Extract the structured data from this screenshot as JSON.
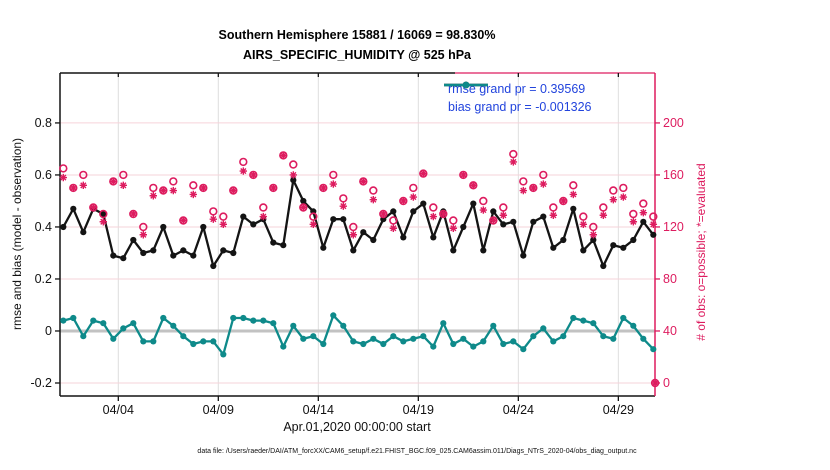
{
  "footer": {
    "data_file": "data file: /Users/raeder/DAI/ATM_forcXX/CAM6_setup/f.e21.FHIST_BGC.f09_025.CAM6assim.011/Diags_NTrS_2020-04/obs_diag_output.nc"
  },
  "legend": {
    "rmse_label": "rmse grand pr = 0.39569",
    "bias_label": "bias grand pr = -0.001326",
    "text_color": "#2244dd"
  },
  "colors": {
    "rmse": "#141414",
    "bias": "#0e8a8a",
    "obs": "#dd1c5f",
    "zero_line": "#c2c2c2",
    "grid_h": "#f6d3da",
    "grid_v": "#dedede",
    "axis_left": "#141414",
    "axis_right": "#dd1c5f"
  },
  "chart_data": {
    "type": "line",
    "title": "Southern Hemisphere 15881 / 16069 = 98.830%",
    "subtitle": "AIRS_SPECIFIC_HUMIDITY @ 525 hPa",
    "xlabel": "Apr.01,2020 00:00:00 start",
    "ylabel_left": "rmse and bias (model - observation)",
    "ylabel_right": "# of obs: o=possible; *=evaluated",
    "legend_position": "top-right-inside",
    "grid": true,
    "xlim": [
      1.085,
      30.833
    ],
    "ylim_left": [
      -0.25,
      0.992
    ],
    "right_axis_map": {
      "scale": 200,
      "offset": -0.2
    },
    "xticks": [
      {
        "v": 4,
        "label": "04/04"
      },
      {
        "v": 9,
        "label": "04/09"
      },
      {
        "v": 14,
        "label": "04/14"
      },
      {
        "v": 19,
        "label": "04/19"
      },
      {
        "v": 24,
        "label": "04/24"
      },
      {
        "v": 29,
        "label": "04/29"
      }
    ],
    "yticks_left": [
      {
        "v": -0.2,
        "label": "-0.2"
      },
      {
        "v": 0,
        "label": "0"
      },
      {
        "v": 0.2,
        "label": "0.2"
      },
      {
        "v": 0.4,
        "label": "0.4"
      },
      {
        "v": 0.6,
        "label": "0.6"
      },
      {
        "v": 0.8,
        "label": "0.8"
      }
    ],
    "yticks_right": [
      {
        "v": 0,
        "label": "0"
      },
      {
        "v": 40,
        "label": "40"
      },
      {
        "v": 80,
        "label": "80"
      },
      {
        "v": 120,
        "label": "120"
      },
      {
        "v": 160,
        "label": "160"
      },
      {
        "v": 200,
        "label": "200"
      }
    ],
    "x": [
      1.25,
      1.75,
      2.25,
      2.75,
      3.25,
      3.75,
      4.25,
      4.75,
      5.25,
      5.75,
      6.25,
      6.75,
      7.25,
      7.75,
      8.25,
      8.75,
      9.25,
      9.75,
      10.25,
      10.75,
      11.25,
      11.75,
      12.25,
      12.75,
      13.25,
      13.75,
      14.25,
      14.75,
      15.25,
      15.75,
      16.25,
      16.75,
      17.25,
      17.75,
      18.25,
      18.75,
      19.25,
      19.75,
      20.25,
      20.75,
      21.25,
      21.75,
      22.25,
      22.75,
      23.25,
      23.75,
      24.25,
      24.75,
      25.25,
      25.75,
      26.25,
      26.75,
      27.25,
      27.75,
      28.25,
      28.75,
      29.25,
      29.75,
      30.25,
      30.75,
      30.84
    ],
    "series": [
      {
        "name": "rmse",
        "grand_value": 0.39569,
        "axis": "left",
        "marker": "dot",
        "values": [
          0.4,
          0.47,
          0.38,
          0.47,
          0.45,
          0.29,
          0.28,
          0.35,
          0.3,
          0.31,
          0.4,
          0.29,
          0.31,
          0.29,
          0.4,
          0.25,
          0.31,
          0.3,
          0.44,
          0.41,
          0.43,
          0.34,
          0.33,
          0.58,
          0.5,
          0.46,
          0.32,
          0.43,
          0.43,
          0.31,
          0.38,
          0.35,
          0.43,
          0.46,
          0.36,
          0.46,
          0.49,
          0.36,
          0.46,
          0.31,
          0.4,
          0.49,
          0.31,
          0.46,
          0.41,
          0.42,
          0.29,
          0.42,
          0.44,
          0.32,
          0.35,
          0.47,
          0.31,
          0.35,
          0.25,
          0.33,
          0.32,
          0.35,
          0.42,
          0.37,
          null
        ]
      },
      {
        "name": "bias",
        "grand_value": -0.001326,
        "axis": "left",
        "marker": "dot",
        "values": [
          0.04,
          0.05,
          -0.02,
          0.04,
          0.03,
          -0.03,
          0.01,
          0.03,
          -0.04,
          -0.04,
          0.05,
          0.02,
          -0.02,
          -0.05,
          -0.04,
          -0.04,
          -0.09,
          0.05,
          0.05,
          0.04,
          0.04,
          0.03,
          -0.06,
          0.02,
          -0.03,
          -0.02,
          -0.05,
          0.06,
          0.02,
          -0.04,
          -0.05,
          -0.03,
          -0.05,
          -0.02,
          -0.04,
          -0.03,
          -0.02,
          -0.06,
          0.03,
          -0.05,
          -0.03,
          -0.06,
          -0.04,
          0.02,
          -0.05,
          -0.04,
          -0.07,
          -0.02,
          0.01,
          -0.04,
          -0.02,
          0.05,
          0.04,
          0.03,
          -0.02,
          -0.03,
          0.05,
          0.02,
          -0.03,
          -0.07,
          null
        ]
      },
      {
        "name": "possible",
        "axis": "right",
        "marker": "circle",
        "values": [
          165,
          150,
          160,
          135,
          130,
          155,
          160,
          130,
          120,
          150,
          148,
          155,
          125,
          152,
          150,
          132,
          128,
          148,
          170,
          160,
          135,
          150,
          175,
          168,
          135,
          128,
          150,
          160,
          142,
          120,
          155,
          148,
          130,
          125,
          140,
          150,
          161,
          135,
          130,
          125,
          160,
          152,
          140,
          125,
          135,
          176,
          155,
          150,
          160,
          135,
          140,
          152,
          128,
          120,
          135,
          148,
          150,
          130,
          138,
          128,
          0
        ]
      },
      {
        "name": "evaluated",
        "axis": "right",
        "marker": "asterisk",
        "values": [
          158,
          150,
          152,
          135,
          124,
          155,
          152,
          130,
          114,
          144,
          148,
          148,
          125,
          145,
          150,
          126,
          122,
          148,
          163,
          160,
          128,
          150,
          175,
          160,
          135,
          122,
          150,
          153,
          136,
          114,
          155,
          141,
          130,
          119,
          140,
          143,
          161,
          128,
          130,
          119,
          160,
          152,
          133,
          125,
          129,
          170,
          148,
          150,
          153,
          129,
          140,
          145,
          122,
          114,
          129,
          141,
          143,
          124,
          131,
          122,
          0
        ]
      }
    ],
    "zero_reference_line": 0
  }
}
